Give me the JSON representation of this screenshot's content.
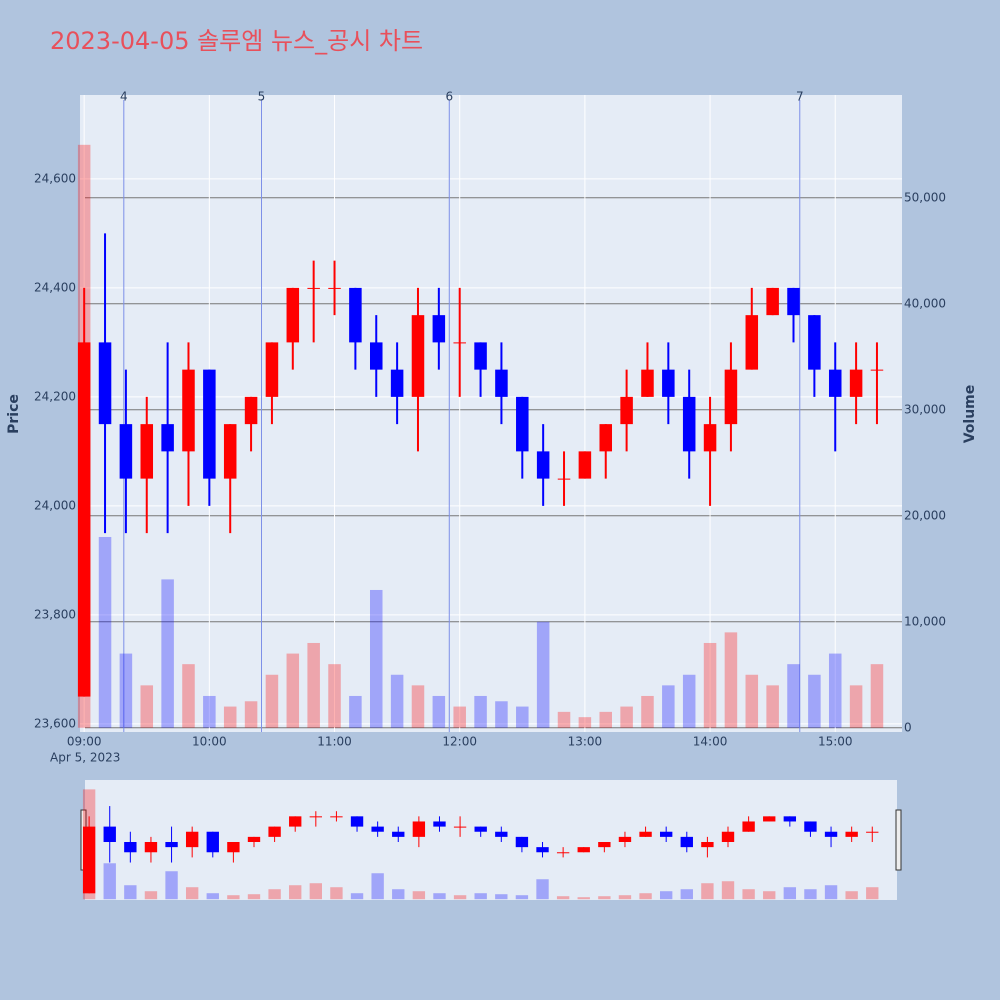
{
  "chart_data": {
    "type": "candlestick",
    "title": "2023-04-05 솔루엠 뉴스_공시 차트",
    "y_label": "Price",
    "y2_label": "Volume",
    "x_date_label": "Apr 5, 2023",
    "x": [
      "09:00",
      "09:10",
      "09:20",
      "09:30",
      "09:40",
      "09:50",
      "10:00",
      "10:10",
      "10:20",
      "10:30",
      "10:40",
      "10:50",
      "11:00",
      "11:10",
      "11:20",
      "11:30",
      "11:40",
      "11:50",
      "12:00",
      "12:10",
      "12:20",
      "12:30",
      "12:40",
      "12:50",
      "13:00",
      "13:10",
      "13:20",
      "13:30",
      "13:40",
      "13:50",
      "14:00",
      "14:10",
      "14:20",
      "14:30",
      "14:40",
      "14:50",
      "15:00",
      "15:10",
      "15:20"
    ],
    "open": [
      23650,
      24300,
      24150,
      24050,
      24150,
      24100,
      24250,
      24050,
      24150,
      24200,
      24300,
      24400,
      24400,
      24400,
      24300,
      24250,
      24200,
      24350,
      24300,
      24300,
      24250,
      24200,
      24100,
      24050,
      24050,
      24100,
      24150,
      24200,
      24250,
      24200,
      24100,
      24150,
      24250,
      24350,
      24400,
      24350,
      24250,
      24200,
      24250
    ],
    "high": [
      24400,
      24500,
      24250,
      24200,
      24300,
      24300,
      24250,
      24150,
      24200,
      24300,
      24400,
      24450,
      24450,
      24400,
      24350,
      24300,
      24400,
      24400,
      24400,
      24300,
      24300,
      24200,
      24150,
      24100,
      24100,
      24150,
      24250,
      24300,
      24300,
      24250,
      24200,
      24300,
      24400,
      24400,
      24400,
      24350,
      24300,
      24300,
      24300
    ],
    "low": [
      23650,
      23950,
      23950,
      23950,
      23950,
      24000,
      24000,
      23950,
      24100,
      24150,
      24250,
      24300,
      24350,
      24250,
      24200,
      24150,
      24100,
      24250,
      24200,
      24200,
      24150,
      24050,
      24000,
      24000,
      24050,
      24050,
      24100,
      24200,
      24150,
      24050,
      24000,
      24100,
      24250,
      24350,
      24300,
      24200,
      24100,
      24150,
      24150
    ],
    "close": [
      24300,
      24150,
      24050,
      24150,
      24100,
      24250,
      24050,
      24150,
      24200,
      24300,
      24400,
      24400,
      24400,
      24300,
      24250,
      24200,
      24350,
      24300,
      24300,
      24250,
      24200,
      24100,
      24050,
      24050,
      24100,
      24150,
      24200,
      24250,
      24200,
      24100,
      24150,
      24250,
      24350,
      24400,
      24350,
      24250,
      24200,
      24250,
      24250
    ],
    "volume": [
      55000,
      18000,
      7000,
      4000,
      14000,
      6000,
      3000,
      2000,
      2500,
      5000,
      7000,
      8000,
      6000,
      3000,
      13000,
      5000,
      4000,
      3000,
      2000,
      3000,
      2500,
      2000,
      10000,
      1500,
      1000,
      1500,
      2000,
      3000,
      4000,
      5000,
      8000,
      9000,
      5000,
      4000,
      6000,
      5000,
      7000,
      4000,
      6000
    ],
    "increasing_color": "#ff0000",
    "decreasing_color": "#0000ff",
    "xlim": [
      "08:58",
      "15:32"
    ],
    "xticks": [
      "09:00",
      "10:00",
      "11:00",
      "12:00",
      "13:00",
      "14:00",
      "15:00"
    ],
    "ylim": [
      23585,
      24754
    ],
    "yticks": [
      {
        "value": 23600,
        "label": "23,600"
      },
      {
        "value": 23800,
        "label": "23,800"
      },
      {
        "value": 24000,
        "label": "24,000"
      },
      {
        "value": 24200,
        "label": "24,200"
      },
      {
        "value": 24400,
        "label": "24,400"
      },
      {
        "value": 24600,
        "label": "24,600"
      }
    ],
    "y2lim": [
      -400,
      59700
    ],
    "y2ticks": [
      0,
      {
        "value": 10000,
        "label": "10,000"
      },
      {
        "value": 20000,
        "label": "20,000"
      },
      {
        "value": 30000,
        "label": "30,000"
      },
      {
        "value": 40000,
        "label": "40,000"
      },
      {
        "value": 50000,
        "label": "50,000"
      }
    ],
    "annotations": [
      {
        "x": "09:19",
        "text": "4"
      },
      {
        "x": "10:25",
        "text": "5"
      },
      {
        "x": "11:55",
        "text": "6"
      },
      {
        "x": "14:43",
        "text": "7"
      }
    ]
  }
}
